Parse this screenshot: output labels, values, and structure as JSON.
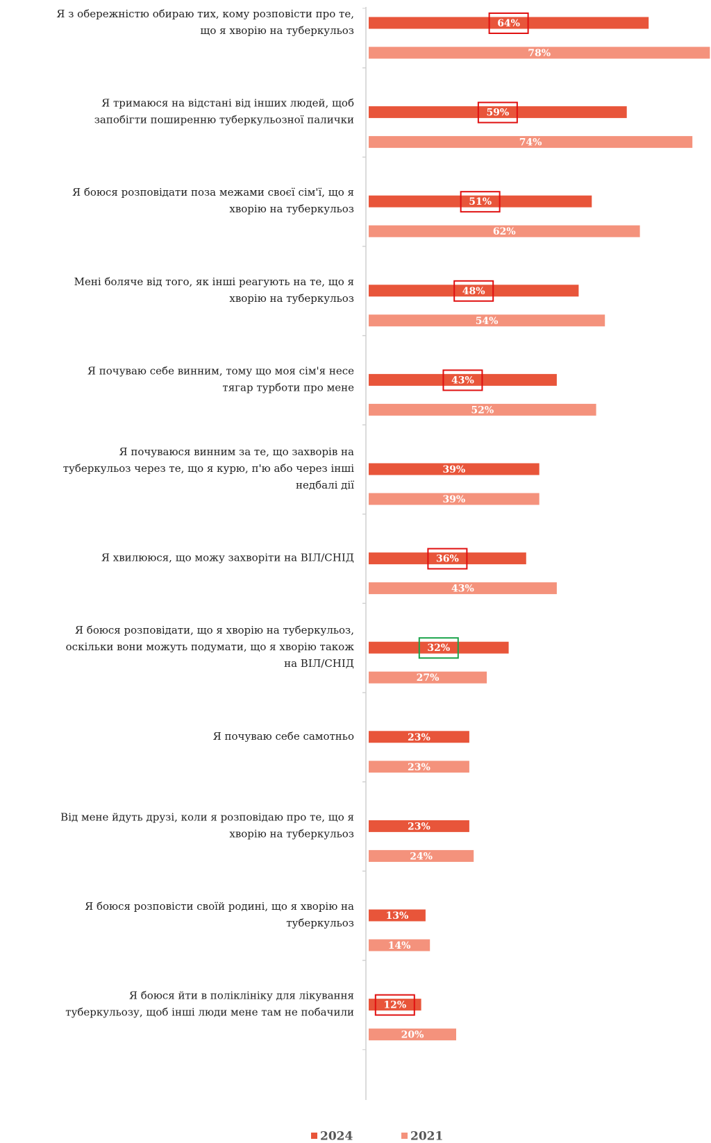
{
  "chart_data": {
    "type": "barh",
    "categories": [
      [
        "Я з обережністю обираю тих, кому розповісти про те,",
        "що я хворію на туберкульоз"
      ],
      [
        "Я тримаюся на відстані від інших людей, щоб",
        "запобігти поширенню туберкульозної палички"
      ],
      [
        "Я боюся розповідати поза межами своєї сім'ї, що я",
        "хворію на туберкульоз"
      ],
      [
        "Мені боляче від того, як інші реагують на те, що я",
        "хворію на туберкульоз"
      ],
      [
        "Я почуваю себе винним, тому що моя сім'я несе",
        "тягар турботи про мене"
      ],
      [
        "Я почуваюся винним за те, що захворів на",
        "туберкульоз через те, що я курю, п'ю або через інші",
        "недбалі дії"
      ],
      [
        "Я хвилююся, що можу захворіти на ВІЛ/СНІД"
      ],
      [
        "Я боюся розповідати, що я хворію на туберкульоз,",
        "оскільки вони можуть подумати, що я хворію також",
        "на ВІЛ/СНІД"
      ],
      [
        "Я почуваю себе самотньо"
      ],
      [
        "Від мене йдуть друзі, коли я розповідаю про те, що я",
        "хворію на туберкульоз"
      ],
      [
        "Я боюся розповісти своїй родині, що я хворію на",
        "туберкульоз"
      ],
      [
        "Я боюся йти в поліклініку для лікування",
        "туберкульозу, щоб інші люди мене там не побачили"
      ]
    ],
    "series": [
      {
        "name": "2024",
        "color": "#e8553a",
        "values": [
          64,
          59,
          51,
          48,
          43,
          39,
          36,
          32,
          23,
          23,
          13,
          12
        ],
        "value_labels": [
          "64%",
          "59%",
          "51%",
          "48%",
          "43%",
          "39%",
          "36%",
          "32%",
          "23%",
          "23%",
          "13%",
          "12%"
        ]
      },
      {
        "name": "2021",
        "color": "#f4927c",
        "values": [
          78,
          74,
          62,
          54,
          52,
          39,
          43,
          27,
          23,
          24,
          14,
          20
        ],
        "value_labels": [
          "78%",
          "74%",
          "62%",
          "54%",
          "52%",
          "39%",
          "43%",
          "27%",
          "23%",
          "24%",
          "14%",
          "20%"
        ]
      }
    ],
    "legend": "bottom"
  }
}
